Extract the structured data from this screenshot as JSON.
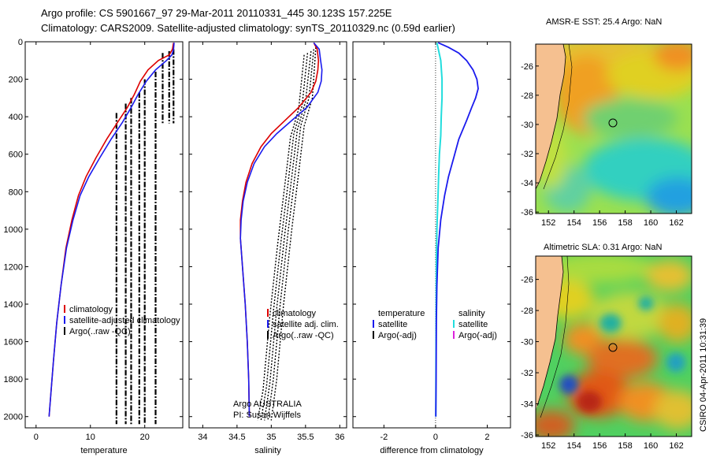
{
  "header": {
    "line1": "Argo profile: CS 5901667_97 29-Mar-2011 20110331_445 30.123S 157.225E",
    "line2": "Climatology: CARS2009. Satellite-adjusted climatology: synTS_20110329.nc (0.59d earlier)"
  },
  "colors": {
    "climatology": "#dd0000",
    "satellite": "#1a1aee",
    "argo": "#000000",
    "satellite_sal": "#22dddd",
    "argo_adj_sal": "#dd22dd",
    "land": "#f5c090"
  },
  "footer": {
    "credit1": "Argo AUSTRALIA",
    "credit2": "PI: Susan Wijffels",
    "stamp": "CSIRO 04-Apr-2011 10:31:39"
  },
  "chart_data": [
    {
      "type": "line",
      "name": "temperature",
      "xlabel": "temperature",
      "ylabel": "",
      "xlim": [
        -2,
        27
      ],
      "ylim": [
        2060,
        0
      ],
      "xticks": [
        0,
        10,
        20
      ],
      "yticks": [
        0,
        200,
        400,
        600,
        800,
        1000,
        1200,
        1400,
        1600,
        1800,
        2000
      ],
      "legend": [
        "climatology",
        "satellite-adjusted climatology",
        "Argo(..raw -QC)"
      ],
      "series": [
        {
          "name": "climatology",
          "points": [
            [
              25.3,
              5
            ],
            [
              25.1,
              40
            ],
            [
              24.5,
              70
            ],
            [
              22.5,
              100
            ],
            [
              20.6,
              150
            ],
            [
              19.2,
              210
            ],
            [
              18.1,
              280
            ],
            [
              16.8,
              350
            ],
            [
              15.0,
              430
            ],
            [
              13.0,
              520
            ],
            [
              11.0,
              620
            ],
            [
              9.2,
              720
            ],
            [
              7.8,
              820
            ],
            [
              6.6,
              950
            ],
            [
              5.5,
              1100
            ],
            [
              4.6,
              1300
            ],
            [
              3.8,
              1500
            ],
            [
              3.2,
              1700
            ],
            [
              2.8,
              1850
            ],
            [
              2.4,
              2000
            ]
          ]
        },
        {
          "name": "satellite-adjusted climatology",
          "points": [
            [
              25.4,
              5
            ],
            [
              25.3,
              40
            ],
            [
              25.0,
              70
            ],
            [
              24.0,
              100
            ],
            [
              22.0,
              150
            ],
            [
              20.3,
              210
            ],
            [
              18.8,
              280
            ],
            [
              17.5,
              350
            ],
            [
              15.9,
              430
            ],
            [
              13.8,
              520
            ],
            [
              11.7,
              620
            ],
            [
              9.7,
              720
            ],
            [
              8.1,
              820
            ],
            [
              6.8,
              950
            ],
            [
              5.6,
              1100
            ],
            [
              4.6,
              1300
            ],
            [
              3.8,
              1500
            ],
            [
              3.2,
              1700
            ],
            [
              2.8,
              1850
            ],
            [
              2.4,
              2000
            ]
          ]
        },
        {
          "name": "Argo(..raw -QC)",
          "segments": [
            [
              25.3,
              40,
              25.3,
              435
            ],
            [
              24.5,
              50,
              24.5,
              435
            ],
            [
              23.3,
              60,
              23.3,
              435
            ],
            [
              22.0,
              160,
              22.0,
              2040
            ],
            [
              20.0,
              200,
              20.0,
              2040
            ],
            [
              19.0,
              270,
              19.0,
              2040
            ],
            [
              17.5,
              300,
              17.5,
              2040
            ],
            [
              16.5,
              330,
              16.5,
              2040
            ],
            [
              14.8,
              380,
              14.8,
              2040
            ]
          ]
        }
      ]
    },
    {
      "type": "line",
      "name": "salinity",
      "xlabel": "salinity",
      "xlim": [
        33.8,
        36.1
      ],
      "ylim": [
        2060,
        0
      ],
      "xticks": [
        34,
        34.5,
        35,
        35.5,
        36
      ],
      "legend": [
        "climatology",
        "satellite adj. clim.",
        "Argo(..raw -QC)"
      ],
      "series": [
        {
          "name": "climatology",
          "points": [
            [
              35.62,
              5
            ],
            [
              35.67,
              40
            ],
            [
              35.69,
              100
            ],
            [
              35.68,
              150
            ],
            [
              35.65,
              210
            ],
            [
              35.58,
              270
            ],
            [
              35.4,
              350
            ],
            [
              35.2,
              420
            ],
            [
              35.0,
              490
            ],
            [
              34.85,
              560
            ],
            [
              34.72,
              650
            ],
            [
              34.63,
              750
            ],
            [
              34.58,
              850
            ],
            [
              34.55,
              950
            ],
            [
              34.55,
              1050
            ],
            [
              34.58,
              1200
            ],
            [
              34.62,
              1400
            ],
            [
              34.65,
              1600
            ],
            [
              34.67,
              1800
            ],
            [
              34.68,
              2000
            ]
          ]
        },
        {
          "name": "satellite adj. clim.",
          "points": [
            [
              35.62,
              5
            ],
            [
              35.7,
              40
            ],
            [
              35.72,
              100
            ],
            [
              35.74,
              150
            ],
            [
              35.73,
              210
            ],
            [
              35.68,
              270
            ],
            [
              35.52,
              350
            ],
            [
              35.3,
              420
            ],
            [
              35.08,
              490
            ],
            [
              34.9,
              560
            ],
            [
              34.75,
              650
            ],
            [
              34.65,
              750
            ],
            [
              34.59,
              850
            ],
            [
              34.56,
              950
            ],
            [
              34.55,
              1050
            ],
            [
              34.58,
              1200
            ],
            [
              34.62,
              1400
            ],
            [
              34.65,
              1600
            ],
            [
              34.67,
              1800
            ],
            [
              34.68,
              2000
            ]
          ]
        },
        {
          "name": "Argo(..raw -QC)",
          "lines": [
            [
              [
                35.65,
                30
              ],
              [
                35.6,
                300
              ],
              [
                35.48,
                450
              ],
              [
                35.4,
                700
              ],
              [
                35.3,
                1000
              ],
              [
                35.18,
                1400
              ],
              [
                35.08,
                1800
              ],
              [
                35.0,
                2020
              ]
            ],
            [
              [
                35.62,
                40
              ],
              [
                35.55,
                300
              ],
              [
                35.43,
                450
              ],
              [
                35.35,
                700
              ],
              [
                35.25,
                1000
              ],
              [
                35.13,
                1400
              ],
              [
                35.03,
                1800
              ],
              [
                34.95,
                2020
              ]
            ],
            [
              [
                35.58,
                50
              ],
              [
                35.5,
                320
              ],
              [
                35.38,
                470
              ],
              [
                35.3,
                720
              ],
              [
                35.2,
                1020
              ],
              [
                35.08,
                1420
              ],
              [
                34.98,
                1820
              ],
              [
                34.9,
                2020
              ]
            ],
            [
              [
                35.53,
                60
              ],
              [
                35.45,
                340
              ],
              [
                35.33,
                490
              ],
              [
                35.25,
                740
              ],
              [
                35.15,
                1040
              ],
              [
                35.03,
                1440
              ],
              [
                34.93,
                1840
              ],
              [
                34.85,
                2020
              ]
            ],
            [
              [
                35.48,
                70
              ],
              [
                35.4,
                360
              ],
              [
                35.28,
                510
              ],
              [
                35.2,
                760
              ],
              [
                35.1,
                1060
              ],
              [
                34.98,
                1460
              ],
              [
                34.88,
                1860
              ],
              [
                34.8,
                2020
              ]
            ]
          ]
        }
      ]
    },
    {
      "type": "line",
      "name": "difference",
      "xlabel": "difference from climatology",
      "xlim": [
        -3.2,
        2.9
      ],
      "ylim": [
        2060,
        0
      ],
      "xticks": [
        -2,
        0,
        2
      ],
      "legend": [
        "temperature",
        "satellite",
        "Argo(-adj)",
        "salinity",
        "satellite",
        "Argo(-adj)"
      ],
      "series": [
        {
          "name": "temperature satellite",
          "points": [
            [
              0.1,
              5
            ],
            [
              0.5,
              30
            ],
            [
              0.9,
              60
            ],
            [
              1.2,
              100
            ],
            [
              1.45,
              150
            ],
            [
              1.6,
              200
            ],
            [
              1.65,
              250
            ],
            [
              1.55,
              300
            ],
            [
              1.4,
              350
            ],
            [
              1.2,
              420
            ],
            [
              0.9,
              520
            ],
            [
              0.7,
              620
            ],
            [
              0.5,
              720
            ],
            [
              0.35,
              820
            ],
            [
              0.2,
              950
            ],
            [
              0.1,
              1100
            ],
            [
              0.05,
              1300
            ],
            [
              0.03,
              1500
            ],
            [
              0.02,
              1800
            ],
            [
              0.01,
              2000
            ]
          ]
        },
        {
          "name": "salinity satellite",
          "points": [
            [
              0.05,
              5
            ],
            [
              0.2,
              100
            ],
            [
              0.25,
              200
            ],
            [
              0.25,
              300
            ],
            [
              0.22,
              400
            ],
            [
              0.2,
              500
            ],
            [
              0.15,
              600
            ],
            [
              0.12,
              700
            ],
            [
              0.1,
              800
            ],
            [
              0.05,
              1000
            ],
            [
              0.03,
              1200
            ],
            [
              0.02,
              1500
            ],
            [
              0.01,
              2000
            ]
          ]
        }
      ]
    },
    {
      "type": "heatmap",
      "name": "sst_map",
      "title": "AMSR-E SST: 25.4 Argo: NaN",
      "xlim": [
        151,
        163.2
      ],
      "ylim": [
        -36.1,
        -24.5
      ],
      "xticks": [
        152,
        154,
        156,
        158,
        160,
        162
      ],
      "yticks": [
        -26,
        -28,
        -30,
        -32,
        -34,
        -36
      ],
      "float_position": [
        157.225,
        -30.123
      ]
    },
    {
      "type": "heatmap",
      "name": "sla_map",
      "title": "Altimetric SLA: 0.31 Argo: NaN",
      "xlim": [
        151,
        163.2
      ],
      "ylim": [
        -36.1,
        -24.5
      ],
      "xticks": [
        152,
        154,
        156,
        158,
        160,
        162
      ],
      "yticks": [
        -26,
        -28,
        -30,
        -32,
        -34,
        -36
      ],
      "float_position": [
        157.225,
        -30.123
      ]
    }
  ]
}
